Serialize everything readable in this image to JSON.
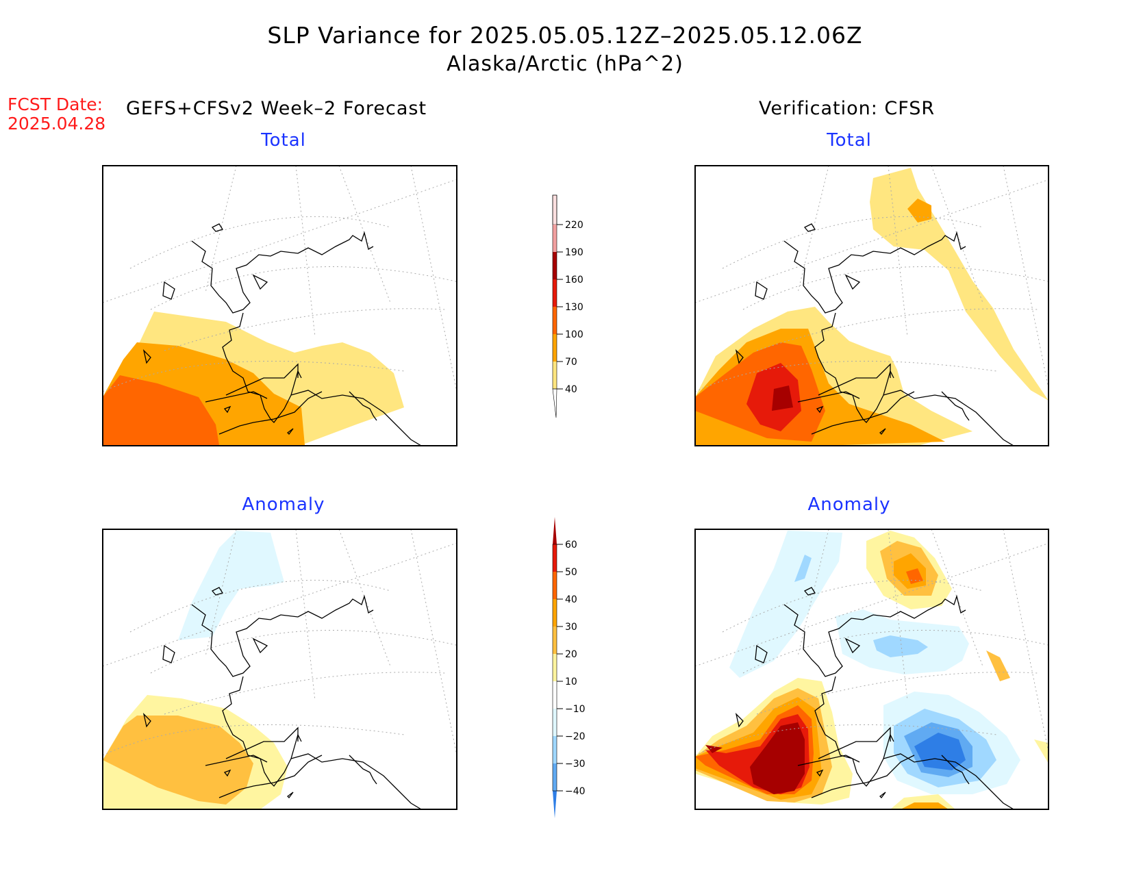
{
  "title": {
    "line1": "SLP Variance for 2025.05.05.12Z–2025.05.12.06Z",
    "line2": "Alaska/Arctic (hPa^2)"
  },
  "forecast": {
    "label": "FCST Date:",
    "date": "2025.04.28"
  },
  "columns": {
    "left": "GEFS+CFSv2 Week–2 Forecast",
    "right": "Verification: CFSR"
  },
  "panels": {
    "top_left": "Total",
    "top_right": "Total",
    "bottom_left": "Anomaly",
    "bottom_right": "Anomaly"
  },
  "colorbars": {
    "total": {
      "levels": [
        "40",
        "70",
        "100",
        "130",
        "160",
        "190",
        "220"
      ],
      "colors": [
        "#ffe680",
        "#ffa500",
        "#ff6600",
        "#e61a0a",
        "#a60000",
        "#f2a0a0",
        "#fde0e0"
      ]
    },
    "anomaly": {
      "levels": [
        "60",
        "50",
        "40",
        "30",
        "20",
        "10",
        "−10",
        "−20",
        "−30",
        "−40"
      ],
      "colors": [
        "#a60000",
        "#e61a0a",
        "#ff6600",
        "#ffa500",
        "#ffc040",
        "#fff5a0",
        "#ffffff",
        "#e0f8ff",
        "#a0d8ff",
        "#60aaf2",
        "#2e7ee6"
      ]
    }
  },
  "colors": {
    "title_text": "#000000",
    "panel_title": "#1a33ff",
    "fcst_text": "#ff1a1a"
  }
}
